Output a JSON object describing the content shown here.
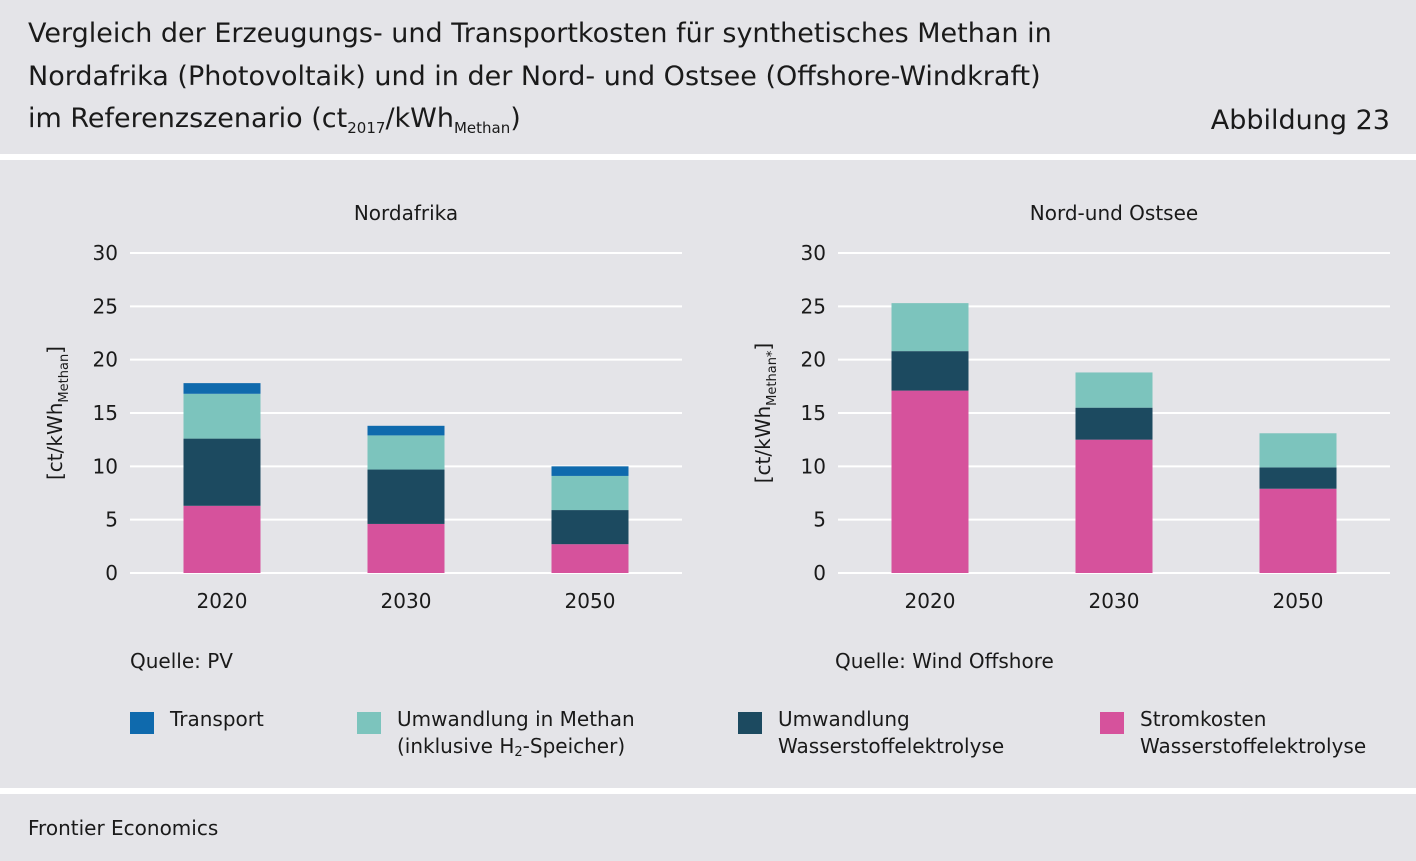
{
  "header": {
    "title_line1": "Vergleich der Erzeugungs- und Transportkosten für synthetisches Methan in",
    "title_line2": "Nordafrika (Photovoltaik) und in der Nord- und Ostsee (Offshore-Windkraft)",
    "title_line3_prefix": "im Referenzszenario (ct",
    "title_line3_sub1": "2017",
    "title_line3_mid": "/kWh",
    "title_line3_sub2": "Methan",
    "title_line3_suffix": ")",
    "figure_label": "Abbildung 23"
  },
  "colors": {
    "Transport": "#0f6aad",
    "Umwandlung in Methan": "#7cc4bd",
    "Umwandlung Wasserstoffelektrolyse": "#1c4a60",
    "Stromkosten Wasserstoffelektrolyse": "#d6529c"
  },
  "chart_data": [
    {
      "type": "bar",
      "stacked": true,
      "title": "Nordafrika",
      "ylabel": "[ct/kWh",
      "ylabel_sub": "Methan",
      "ylabel_end": "]",
      "ylim": [
        0,
        30
      ],
      "yticks": [
        "0",
        "5",
        "10",
        "15",
        "20",
        "25",
        "30"
      ],
      "grid": true,
      "categories": [
        "2020",
        "2030",
        "2050"
      ],
      "series": [
        {
          "name": "Stromkosten Wasserstoffelektrolyse",
          "values": [
            6.3,
            4.6,
            2.7
          ]
        },
        {
          "name": "Umwandlung Wasserstoffelektrolyse",
          "values": [
            6.3,
            5.1,
            3.2
          ]
        },
        {
          "name": "Umwandlung in Methan",
          "values": [
            4.2,
            3.2,
            3.2
          ]
        },
        {
          "name": "Transport",
          "values": [
            1.0,
            0.9,
            0.9
          ]
        }
      ],
      "source": "Quelle: PV"
    },
    {
      "type": "bar",
      "stacked": true,
      "title": "Nord-und Ostsee",
      "ylabel": "[ct/kWh",
      "ylabel_sub": "Methan*",
      "ylabel_end": "]",
      "ylim": [
        0,
        30
      ],
      "yticks": [
        "0",
        "5",
        "10",
        "15",
        "20",
        "25",
        "30"
      ],
      "grid": true,
      "categories": [
        "2020",
        "2030",
        "2050"
      ],
      "series": [
        {
          "name": "Stromkosten Wasserstoffelektrolyse",
          "values": [
            17.1,
            12.5,
            7.9
          ]
        },
        {
          "name": "Umwandlung Wasserstoffelektrolyse",
          "values": [
            3.7,
            3.0,
            2.0
          ]
        },
        {
          "name": "Umwandlung in Methan",
          "values": [
            4.5,
            3.3,
            3.2
          ]
        },
        {
          "name": "Transport",
          "values": [
            0,
            0,
            0
          ]
        }
      ],
      "source": "Quelle: Wind Offshore"
    }
  ],
  "legend": {
    "transport": "Transport",
    "methan_line1": "Umwandlung in Methan",
    "methan_line2_prefix": "(inklusive H",
    "methan_line2_sub": "2",
    "methan_line2_suffix": "-Speicher)",
    "elektrolyse_line1": "Umwandlung",
    "elektrolyse_line2": "Wasserstoffelektrolyse",
    "strom_line1": "Stromkosten",
    "strom_line2": "Wasserstoffelektrolyse"
  },
  "footer": {
    "text": "Frontier Economics"
  }
}
